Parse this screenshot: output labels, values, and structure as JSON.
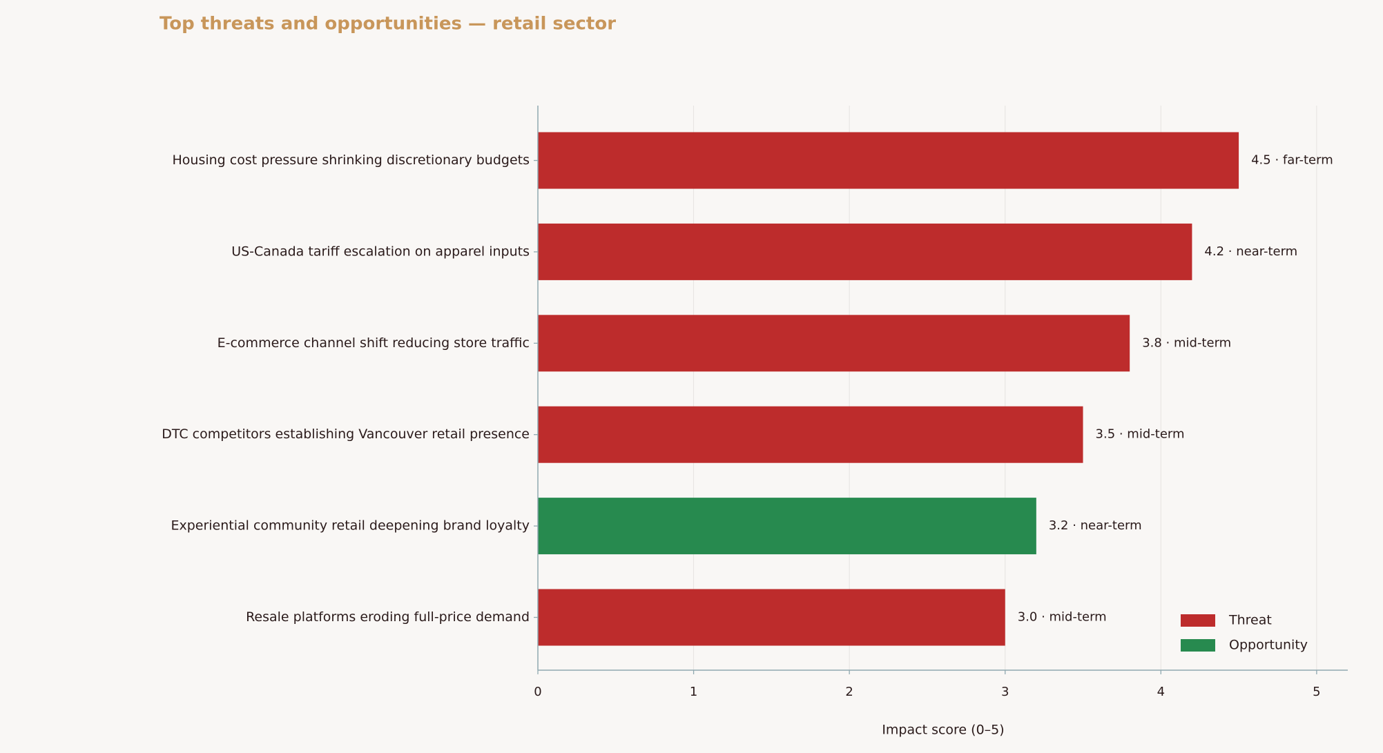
{
  "chart_data": {
    "type": "barh",
    "title": "Top threats and opportunities — retail sector",
    "categories": [
      "Housing cost pressure shrinking discretionary budgets",
      "US-Canada tariff escalation on apparel inputs",
      "E-commerce channel shift reducing store traffic",
      "DTC competitors establishing Vancouver retail presence",
      "Experiential community retail deepening brand loyalty",
      "Resale platforms eroding full-price demand"
    ],
    "series": [
      {
        "name": "Threat",
        "color": "#bd2c2c",
        "values": [
          4.5,
          4.2,
          3.8,
          3.5,
          null,
          3.0
        ],
        "value_labels": [
          "4.5 · far-term",
          "4.2 · near-term",
          "3.8 · mid-term",
          "3.5 · mid-term",
          null,
          "3.0 · mid-term"
        ]
      },
      {
        "name": "Opportunity",
        "color": "#278a4f",
        "values": [
          null,
          null,
          null,
          null,
          3.2,
          null
        ],
        "value_labels": [
          null,
          null,
          null,
          null,
          "3.2 · near-term",
          null
        ]
      }
    ],
    "x_label": "Impact score (0–5)",
    "xlim": [
      0,
      5.2
    ],
    "xticks": [
      0,
      1,
      2,
      3,
      4,
      5
    ],
    "grid": true,
    "legend": "lower right"
  }
}
